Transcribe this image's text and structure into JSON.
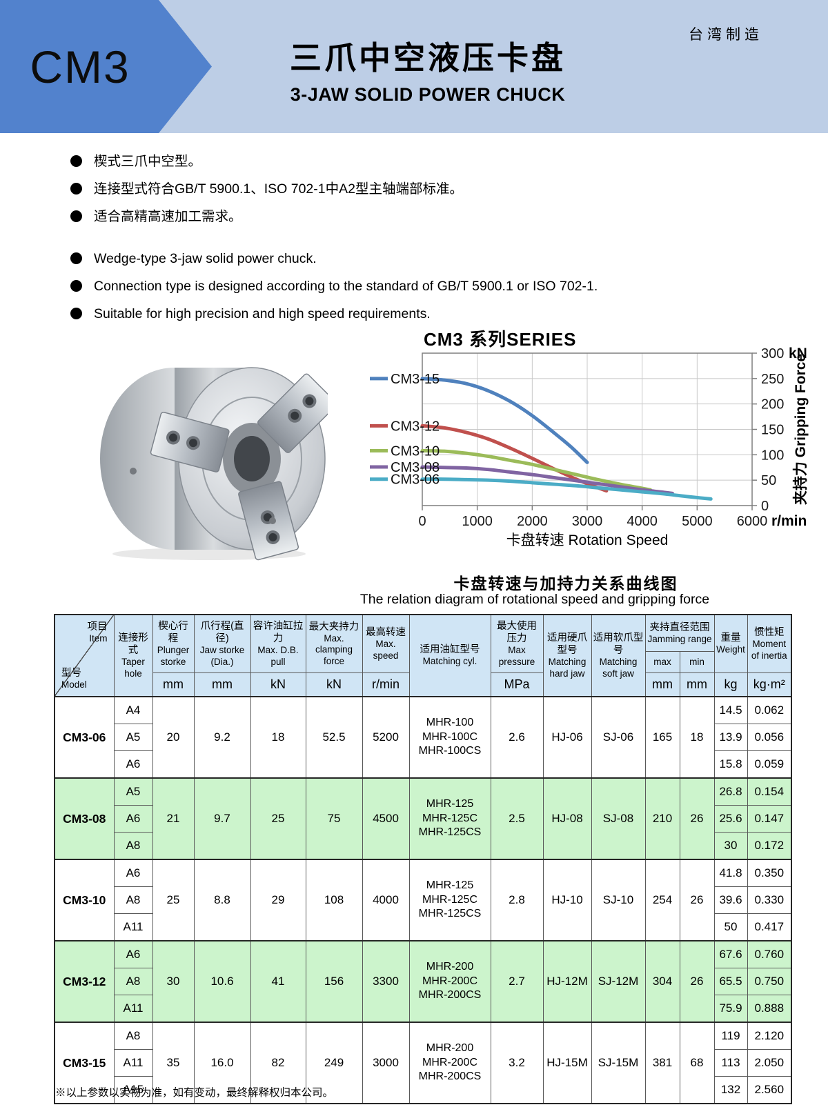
{
  "header": {
    "product_code": "CM3",
    "title_cn": "三爪中空液压卡盘",
    "title_en": "3-JAW SOLID POWER CHUCK",
    "origin": "台湾制造"
  },
  "features_cn": [
    "楔式三爪中空型。",
    "连接型式符合GB/T 5900.1、ISO 702-1中A2型主轴端部标准。",
    "适合高精高速加工需求。"
  ],
  "features_en": [
    "Wedge-type 3-jaw solid power chuck.",
    "Connection type is designed according to the standard of GB/T 5900.1 or ISO 702-1.",
    "Suitable for high precision and high speed requirements."
  ],
  "colors": {
    "band": "#bdcee6",
    "arrow": "#5282cd",
    "table_header_bg": "#d0e5f5",
    "row_highlight": "#ccf4cc",
    "grid": "#c8c8c8",
    "axis": "#7f7f7f"
  },
  "chart_data": {
    "type": "line",
    "title": "CM3 系列SERIES",
    "xlabel": "卡盘转速 Rotation Speed",
    "ylabel": "夹持力 Gripping Force",
    "x_unit": "r/min",
    "y_unit": "kN",
    "xlim": [
      0,
      6000
    ],
    "ylim": [
      0,
      300
    ],
    "x_ticks": [
      0,
      1000,
      2000,
      3000,
      4000,
      5000,
      6000
    ],
    "y_ticks": [
      0,
      50,
      100,
      150,
      200,
      250,
      300
    ],
    "grid": true,
    "legend_position": "left",
    "caption_cn": "卡盘转速与加持力关系曲线图",
    "caption_en": "The relation diagram of rotational speed and gripping force",
    "series": [
      {
        "name": "CM3-15",
        "color": "#4F81BD",
        "points": [
          [
            0,
            250
          ],
          [
            400,
            247
          ],
          [
            800,
            240
          ],
          [
            1200,
            226
          ],
          [
            1600,
            205
          ],
          [
            2000,
            177
          ],
          [
            2400,
            143
          ],
          [
            2700,
            116
          ],
          [
            3000,
            85
          ]
        ]
      },
      {
        "name": "CM3-12",
        "color": "#C0504D",
        "points": [
          [
            0,
            157
          ],
          [
            400,
            153
          ],
          [
            800,
            144
          ],
          [
            1200,
            131
          ],
          [
            1600,
            113
          ],
          [
            2000,
            93
          ],
          [
            2400,
            72
          ],
          [
            2800,
            52
          ],
          [
            3100,
            39
          ],
          [
            3350,
            29
          ]
        ]
      },
      {
        "name": "CM3-10",
        "color": "#9BBB59",
        "points": [
          [
            0,
            108
          ],
          [
            400,
            107
          ],
          [
            800,
            103
          ],
          [
            1200,
            97
          ],
          [
            1600,
            89
          ],
          [
            2000,
            81
          ],
          [
            2400,
            71
          ],
          [
            2800,
            61
          ],
          [
            3200,
            51
          ],
          [
            3600,
            42
          ],
          [
            4000,
            34
          ],
          [
            4150,
            31
          ]
        ]
      },
      {
        "name": "CM3-08",
        "color": "#8064A2",
        "points": [
          [
            0,
            76
          ],
          [
            400,
            75
          ],
          [
            800,
            74
          ],
          [
            1200,
            71
          ],
          [
            1600,
            66
          ],
          [
            2000,
            61
          ],
          [
            2400,
            55
          ],
          [
            2800,
            49
          ],
          [
            3200,
            43
          ],
          [
            3600,
            37
          ],
          [
            4000,
            31
          ],
          [
            4400,
            26
          ],
          [
            4550,
            24
          ]
        ]
      },
      {
        "name": "CM3-06",
        "color": "#4BACC6",
        "points": [
          [
            0,
            52
          ],
          [
            400,
            52
          ],
          [
            800,
            51
          ],
          [
            1200,
            50
          ],
          [
            1600,
            48
          ],
          [
            2000,
            45
          ],
          [
            2400,
            42
          ],
          [
            2800,
            39
          ],
          [
            3200,
            35
          ],
          [
            3600,
            31
          ],
          [
            4000,
            27
          ],
          [
            4400,
            23
          ],
          [
            4800,
            18
          ],
          [
            5250,
            13
          ]
        ]
      }
    ]
  },
  "table": {
    "corner": {
      "item_cn": "项目",
      "item_en": "Item",
      "model_cn": "型号",
      "model_en": "Model"
    },
    "columns": {
      "taper": {
        "cn": "连接形式",
        "en": "Taper hole",
        "unit": ""
      },
      "plunger": {
        "cn": "楔心行程",
        "en": "Plunger storke",
        "unit": "mm"
      },
      "jaw": {
        "cn": "爪行程(直径)",
        "en": "Jaw storke (Dia.)",
        "unit": "mm"
      },
      "db": {
        "cn": "容许油缸拉力",
        "en": "Max. D.B. pull",
        "unit": "kN"
      },
      "clamp": {
        "cn": "最大夹持力",
        "en": "Max. clamping force",
        "unit": "kN"
      },
      "speed": {
        "cn": "最高转速",
        "en": "Max. speed",
        "unit": "r/min"
      },
      "cyl": {
        "cn": "适用油缸型号",
        "en": "Matching cyl.",
        "unit": ""
      },
      "pressure": {
        "cn": "最大使用压力",
        "en": "Max pressure",
        "unit": "MPa"
      },
      "hard": {
        "cn": "适用硬爪型号",
        "en": "Matching hard jaw",
        "unit": ""
      },
      "soft": {
        "cn": "适用软爪型号",
        "en": "Matching soft jaw",
        "unit": ""
      },
      "jamming": {
        "cn": "夹持直径范围",
        "en": "Jamming range",
        "sub_max": "max",
        "sub_min": "min",
        "unit_max": "mm",
        "unit_min": "mm"
      },
      "weight": {
        "cn": "重量",
        "en": "Weight",
        "unit": "kg"
      },
      "inertia": {
        "cn": "惯性矩",
        "en": "Moment of inertia",
        "unit": "kg·m²"
      }
    },
    "groups": [
      {
        "model": "CM3-06",
        "highlight": false,
        "plunger": "20",
        "jaw": "9.2",
        "db": "18",
        "clamp": "52.5",
        "speed": "5200",
        "cyl": [
          "MHR-100",
          "MHR-100C",
          "MHR-100CS"
        ],
        "pressure": "2.6",
        "hard": "HJ-06",
        "soft": "SJ-06",
        "max": "165",
        "min": "18",
        "rows": [
          [
            "A4",
            "14.5",
            "0.062"
          ],
          [
            "A5",
            "13.9",
            "0.056"
          ],
          [
            "A6",
            "15.8",
            "0.059"
          ]
        ]
      },
      {
        "model": "CM3-08",
        "highlight": true,
        "plunger": "21",
        "jaw": "9.7",
        "db": "25",
        "clamp": "75",
        "speed": "4500",
        "cyl": [
          "MHR-125",
          "MHR-125C",
          "MHR-125CS"
        ],
        "pressure": "2.5",
        "hard": "HJ-08",
        "soft": "SJ-08",
        "max": "210",
        "min": "26",
        "rows": [
          [
            "A5",
            "26.8",
            "0.154"
          ],
          [
            "A6",
            "25.6",
            "0.147"
          ],
          [
            "A8",
            "30",
            "0.172"
          ]
        ]
      },
      {
        "model": "CM3-10",
        "highlight": false,
        "plunger": "25",
        "jaw": "8.8",
        "db": "29",
        "clamp": "108",
        "speed": "4000",
        "cyl": [
          "MHR-125",
          "MHR-125C",
          "MHR-125CS"
        ],
        "pressure": "2.8",
        "hard": "HJ-10",
        "soft": "SJ-10",
        "max": "254",
        "min": "26",
        "rows": [
          [
            "A6",
            "41.8",
            "0.350"
          ],
          [
            "A8",
            "39.6",
            "0.330"
          ],
          [
            "A11",
            "50",
            "0.417"
          ]
        ]
      },
      {
        "model": "CM3-12",
        "highlight": true,
        "plunger": "30",
        "jaw": "10.6",
        "db": "41",
        "clamp": "156",
        "speed": "3300",
        "cyl": [
          "MHR-200",
          "MHR-200C",
          "MHR-200CS"
        ],
        "pressure": "2.7",
        "hard": "HJ-12M",
        "soft": "SJ-12M",
        "max": "304",
        "min": "26",
        "rows": [
          [
            "A6",
            "67.6",
            "0.760"
          ],
          [
            "A8",
            "65.5",
            "0.750"
          ],
          [
            "A11",
            "75.9",
            "0.888"
          ]
        ]
      },
      {
        "model": "CM3-15",
        "highlight": false,
        "plunger": "35",
        "jaw": "16.0",
        "db": "82",
        "clamp": "249",
        "speed": "3000",
        "cyl": [
          "MHR-200",
          "MHR-200C",
          "MHR-200CS"
        ],
        "pressure": "3.2",
        "hard": "HJ-15M",
        "soft": "SJ-15M",
        "max": "381",
        "min": "68",
        "rows": [
          [
            "A8",
            "119",
            "2.120"
          ],
          [
            "A11",
            "113",
            "2.050"
          ],
          [
            "A15",
            "132",
            "2.560"
          ]
        ]
      }
    ]
  },
  "footnote": "※以上参数以实物为准，如有变动，最终解释权归本公司。"
}
